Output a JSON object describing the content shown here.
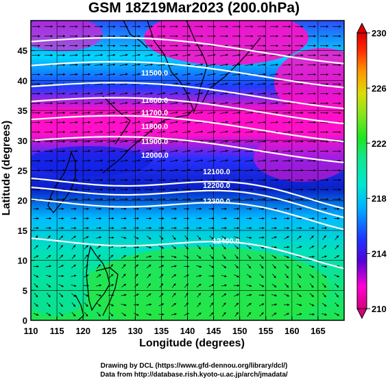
{
  "title": "GSM 18Z19Mar2023 (200.0hPa)",
  "axes": {
    "xlabel": "Longitude (degrees)",
    "ylabel": "Latitude  (degrees)",
    "xticks": [
      "110",
      "115",
      "120",
      "125",
      "130",
      "135",
      "140",
      "145",
      "150",
      "155",
      "160",
      "165"
    ],
    "yticks": [
      "0",
      "5",
      "10",
      "15",
      "20",
      "25",
      "30",
      "35",
      "40",
      "45"
    ],
    "xlim": [
      110,
      170
    ],
    "ylim": [
      0,
      50
    ]
  },
  "colorbar": {
    "ticks": [
      "210",
      "214",
      "218",
      "222",
      "226",
      "230"
    ],
    "range": [
      210,
      230
    ],
    "colors": [
      "#d4007a",
      "#ff00d4",
      "#5500d8",
      "#1f33ff",
      "#00b4ff",
      "#00e6d2",
      "#14e68c",
      "#1ee61e",
      "#82e61e",
      "#dcdc0a",
      "#ff9600",
      "#ff2800",
      "#d70000"
    ]
  },
  "contours": [
    {
      "label": "11500.0"
    },
    {
      "label": "11600.0"
    },
    {
      "label": "11700.0"
    },
    {
      "label": "11800.0"
    },
    {
      "label": "11900.0"
    },
    {
      "label": "12000.0"
    },
    {
      "label": "12100.0"
    },
    {
      "label": "12200.0"
    },
    {
      "label": "12300.0"
    },
    {
      "label": "12400.0"
    }
  ],
  "credits": {
    "line1": "Drawing by DCL (https://www.gfd-dennou.org/library/dcl/)",
    "line2": "Data from http://database.rish.kyoto-u.ac.jp/arch/jmadata/"
  }
}
